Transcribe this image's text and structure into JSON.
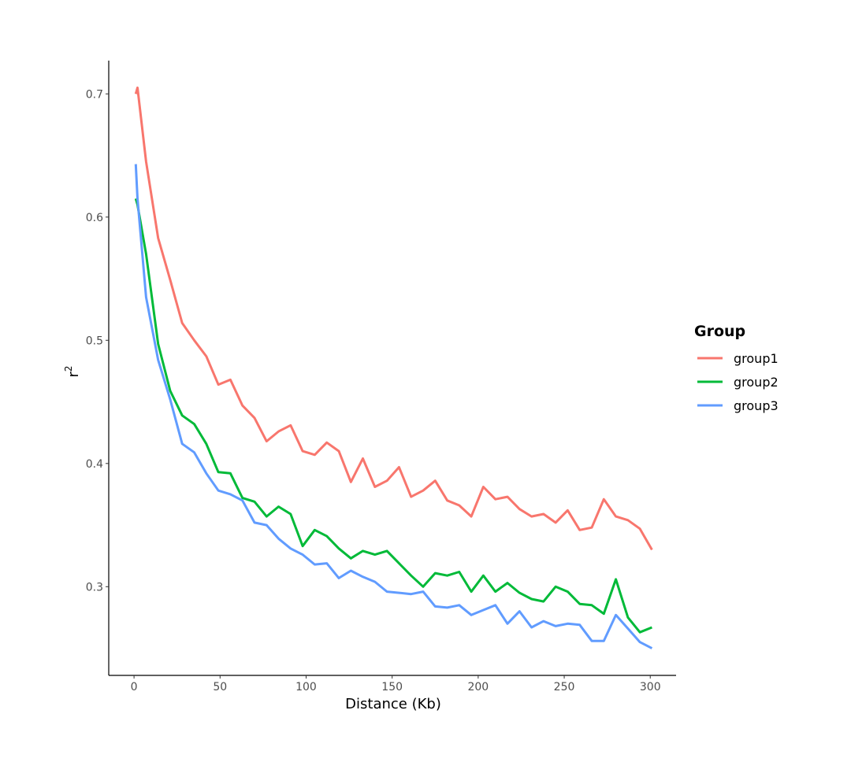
{
  "chart_data": {
    "type": "line",
    "title": "",
    "xlabel": "Distance (Kb)",
    "ylabel": "r",
    "ylabel_superscript": "2",
    "xlim": [
      -14.7,
      315
    ],
    "ylim": [
      0.228,
      0.727
    ],
    "xticks": [
      0,
      50,
      100,
      150,
      200,
      250,
      300
    ],
    "xtick_labels": [
      "0",
      "50",
      "100",
      "150",
      "200",
      "250",
      "300"
    ],
    "yticks": [
      0.3,
      0.4,
      0.5,
      0.6,
      0.7
    ],
    "ytick_labels": [
      "0.3",
      "0.4",
      "0.5",
      "0.6",
      "0.7"
    ],
    "grid": false,
    "legend": {
      "title": "Group",
      "placement": "right"
    },
    "x": [
      1,
      2,
      7,
      14,
      21,
      28,
      35,
      42,
      49,
      56,
      63,
      70,
      77,
      84,
      91,
      98,
      105,
      112,
      119,
      126,
      133,
      140,
      147,
      154,
      161,
      168,
      175,
      182,
      189,
      196,
      203,
      210,
      217,
      224,
      231,
      238,
      245,
      252,
      259,
      266,
      273,
      280,
      287,
      294,
      301
    ],
    "series": [
      {
        "name": "group1",
        "color": "#F8766D",
        "values": [
          0.7,
          0.705,
          0.645,
          0.583,
          0.549,
          0.514,
          0.5,
          0.487,
          0.464,
          0.468,
          0.447,
          0.437,
          0.418,
          0.426,
          0.431,
          0.41,
          0.407,
          0.417,
          0.41,
          0.385,
          0.404,
          0.381,
          0.386,
          0.397,
          0.373,
          0.378,
          0.386,
          0.37,
          0.366,
          0.357,
          0.381,
          0.371,
          0.373,
          0.363,
          0.357,
          0.359,
          0.352,
          0.362,
          0.346,
          0.348,
          0.371,
          0.357,
          0.354,
          0.347,
          0.33
        ]
      },
      {
        "name": "group2",
        "color": "#00BA38",
        "values": [
          0.615,
          0.61,
          0.57,
          0.497,
          0.459,
          0.439,
          0.432,
          0.416,
          0.393,
          0.392,
          0.372,
          0.369,
          0.357,
          0.365,
          0.359,
          0.333,
          0.346,
          0.341,
          0.331,
          0.323,
          0.329,
          0.326,
          0.329,
          0.319,
          0.309,
          0.3,
          0.311,
          0.309,
          0.312,
          0.296,
          0.309,
          0.296,
          0.303,
          0.295,
          0.29,
          0.288,
          0.3,
          0.296,
          0.286,
          0.285,
          0.278,
          0.306,
          0.275,
          0.263,
          0.267
        ]
      },
      {
        "name": "group3",
        "color": "#619CFF",
        "values": [
          0.643,
          0.615,
          0.535,
          0.484,
          0.452,
          0.416,
          0.409,
          0.392,
          0.378,
          0.375,
          0.37,
          0.352,
          0.35,
          0.339,
          0.331,
          0.326,
          0.318,
          0.319,
          0.307,
          0.313,
          0.308,
          0.304,
          0.296,
          0.295,
          0.294,
          0.296,
          0.284,
          0.283,
          0.285,
          0.277,
          0.281,
          0.285,
          0.27,
          0.28,
          0.267,
          0.272,
          0.268,
          0.27,
          0.269,
          0.256,
          0.256,
          0.277,
          0.266,
          0.255,
          0.25
        ]
      }
    ]
  }
}
